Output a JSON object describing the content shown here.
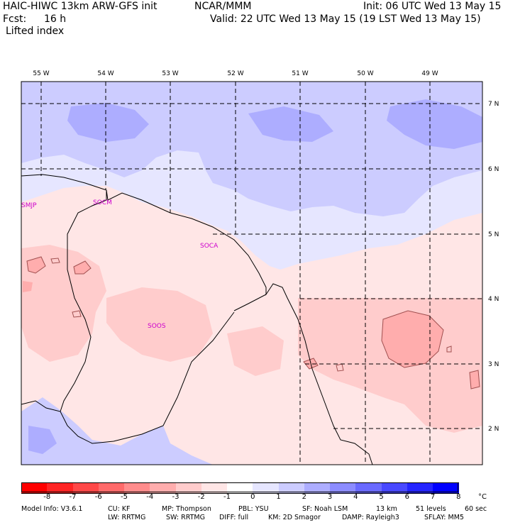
{
  "header": {
    "title_left": "HAIC-HIWC 13km ARW-GFS init",
    "source": "NCAR/MMM",
    "init": "Init: 06 UTC Wed 13 May 15",
    "fcst_label": "Fcst:",
    "fcst_value": "16 h",
    "valid": "Valid: 22 UTC Wed 13 May 15 (19 LST Wed 13 May 15)",
    "field": "Lifted index"
  },
  "map": {
    "lon_labels": [
      "55 W",
      "54 W",
      "53 W",
      "52 W",
      "51 W",
      "50 W",
      "49 W"
    ],
    "lat_labels": [
      "7 N",
      "6 N",
      "5 N",
      "4 N",
      "3 N",
      "2 N"
    ],
    "stations": [
      "SMJP",
      "SOCM",
      "SOCA",
      "SOOS"
    ]
  },
  "colorbar": {
    "colors": [
      "#ff0000",
      "#ff2424",
      "#ff4848",
      "#ff6a6a",
      "#ff8c8c",
      "#ffadad",
      "#ffcccc",
      "#ffe6e6",
      "#ffffff",
      "#e6e6ff",
      "#ccccff",
      "#adadff",
      "#8c8cff",
      "#6a6aff",
      "#4848ff",
      "#2424ff",
      "#0000ff"
    ],
    "ticks": [
      "-8",
      "-7",
      "-6",
      "-5",
      "-4",
      "-3",
      "-2",
      "-1",
      "0",
      "1",
      "2",
      "3",
      "4",
      "5",
      "6",
      "7",
      "8"
    ],
    "unit": "°C"
  },
  "footer": {
    "line1": [
      {
        "label": "Model Info: V3.6.1"
      },
      {
        "label": "CU: KF"
      },
      {
        "label": "MP: Thompson"
      },
      {
        "label": "PBL: YSU"
      },
      {
        "label": "SF: Noah LSM"
      },
      {
        "label": "13 km"
      },
      {
        "label": "51 levels"
      },
      {
        "label": "60 sec"
      }
    ],
    "line2": [
      {
        "label": "LW: RRTMG"
      },
      {
        "label": "SW: RRTMG"
      },
      {
        "label": "DIFF: full"
      },
      {
        "label": "KM: 2D Smagor"
      },
      {
        "label": "DAMP: Rayleigh3"
      },
      {
        "label": "SFLAY: MM5"
      }
    ]
  }
}
